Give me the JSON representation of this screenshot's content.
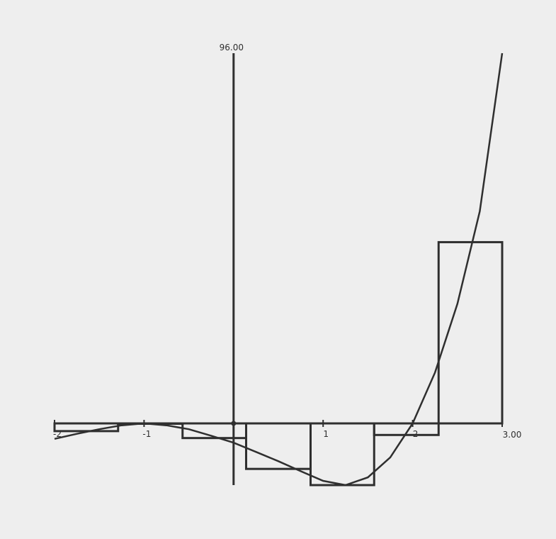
{
  "chart_data": {
    "type": "area",
    "title": "",
    "xlabel": "",
    "ylabel": "",
    "xlim": [
      -2,
      3
    ],
    "ylim": [
      -16,
      96
    ],
    "x_tick_labels": [
      {
        "value": -2,
        "text": "-2"
      },
      {
        "value": -1,
        "text": "-1"
      },
      {
        "value": 1,
        "text": "1"
      },
      {
        "value": 2,
        "text": "2"
      }
    ],
    "x_max_label": "3.00",
    "y_max_label": "96.00",
    "function_samples": {
      "x": [
        -2.0,
        -1.75,
        -1.5,
        -1.25,
        -1.0,
        -0.75,
        -0.5,
        -0.25,
        0.0,
        0.25,
        0.5,
        0.75,
        1.0,
        1.25,
        1.5,
        1.75,
        2.0,
        2.25,
        2.5,
        2.75,
        3.0
      ],
      "y": [
        -4.0,
        -2.7,
        -1.5,
        -0.5,
        0.0,
        -0.5,
        -1.5,
        -3.2,
        -5.0,
        -7.4,
        -9.8,
        -12.4,
        -14.9,
        -16.0,
        -14.0,
        -8.8,
        0.0,
        13.2,
        31.0,
        55.0,
        96.0
      ]
    },
    "riemann_rectangles": [
      {
        "x_start": -2.0,
        "x_end": -1.29,
        "height": -2.0
      },
      {
        "x_start": -1.29,
        "x_end": -0.57,
        "height": 0.0
      },
      {
        "x_start": -0.57,
        "x_end": 0.14,
        "height": -3.8
      },
      {
        "x_start": 0.14,
        "x_end": 0.86,
        "height": -11.8
      },
      {
        "x_start": 0.86,
        "x_end": 1.57,
        "height": -16.0
      },
      {
        "x_start": 1.57,
        "x_end": 2.29,
        "height": -3.0
      },
      {
        "x_start": 2.29,
        "x_end": 3.0,
        "height": 47.0
      }
    ]
  }
}
